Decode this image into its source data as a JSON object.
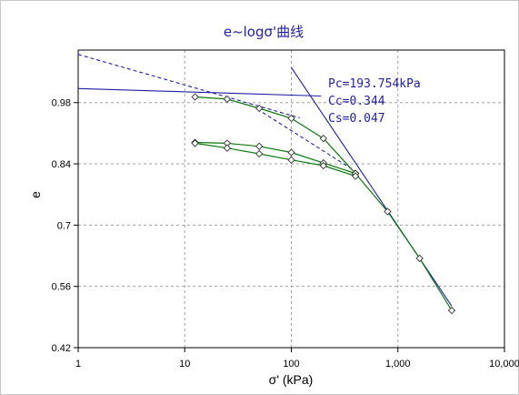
{
  "chart_data": {
    "type": "line",
    "title": "e~logσ'曲线",
    "xlabel": "σ' (kPa)",
    "ylabel": "e",
    "x_scale": "log",
    "xlim": [
      1,
      10000
    ],
    "ylim": [
      0.42,
      1.1
    ],
    "x_ticks": [
      1,
      10,
      100,
      1000,
      10000
    ],
    "x_tick_labels": [
      "1",
      "10",
      "100",
      "1,000",
      "10,000"
    ],
    "y_ticks": [
      0.42,
      0.56,
      0.7,
      0.84,
      0.98
    ],
    "y_tick_labels": [
      "0.42",
      "0.56",
      "0.7",
      "0.84",
      "0.98"
    ],
    "grid": true,
    "annotations": [
      {
        "text": "Pc=193.754kPa"
      },
      {
        "text": "Cc=0.344"
      },
      {
        "text": "Cs=0.047"
      }
    ],
    "series": [
      {
        "role": "loading",
        "x": [
          12.5,
          25,
          50,
          100,
          200,
          400,
          800,
          1600,
          3200
        ],
        "y": [
          0.993,
          0.988,
          0.967,
          0.944,
          0.898,
          0.818,
          0.731,
          0.624,
          0.505
        ]
      },
      {
        "role": "unload-reload-1",
        "x": [
          12.5,
          25,
          50,
          100,
          200,
          400
        ],
        "y": [
          0.889,
          0.887,
          0.88,
          0.866,
          0.842,
          0.818
        ]
      },
      {
        "role": "unload-reload-2",
        "x": [
          12.5,
          25,
          50,
          100,
          200,
          400
        ],
        "y": [
          0.887,
          0.876,
          0.863,
          0.849,
          0.836,
          0.812
        ]
      }
    ],
    "construction_lines": [
      {
        "role": "horizontal",
        "style": "solid",
        "x": [
          1,
          190
        ],
        "y": [
          1.012,
          0.995
        ]
      },
      {
        "role": "compression",
        "style": "solid",
        "x": [
          100,
          3200
        ],
        "y": [
          1.06,
          0.515
        ]
      },
      {
        "role": "tangent",
        "style": "dashed",
        "x": [
          1,
          120
        ],
        "y": [
          1.09,
          0.945
        ]
      },
      {
        "role": "bisector",
        "style": "dashed",
        "x": [
          48,
          400
        ],
        "y": [
          0.965,
          0.823
        ]
      }
    ],
    "colors": {
      "loading": "#0b7a0b",
      "construction": "#1f1fa6",
      "title": "#1f1fa6",
      "grid": "#a0a0a0"
    }
  }
}
